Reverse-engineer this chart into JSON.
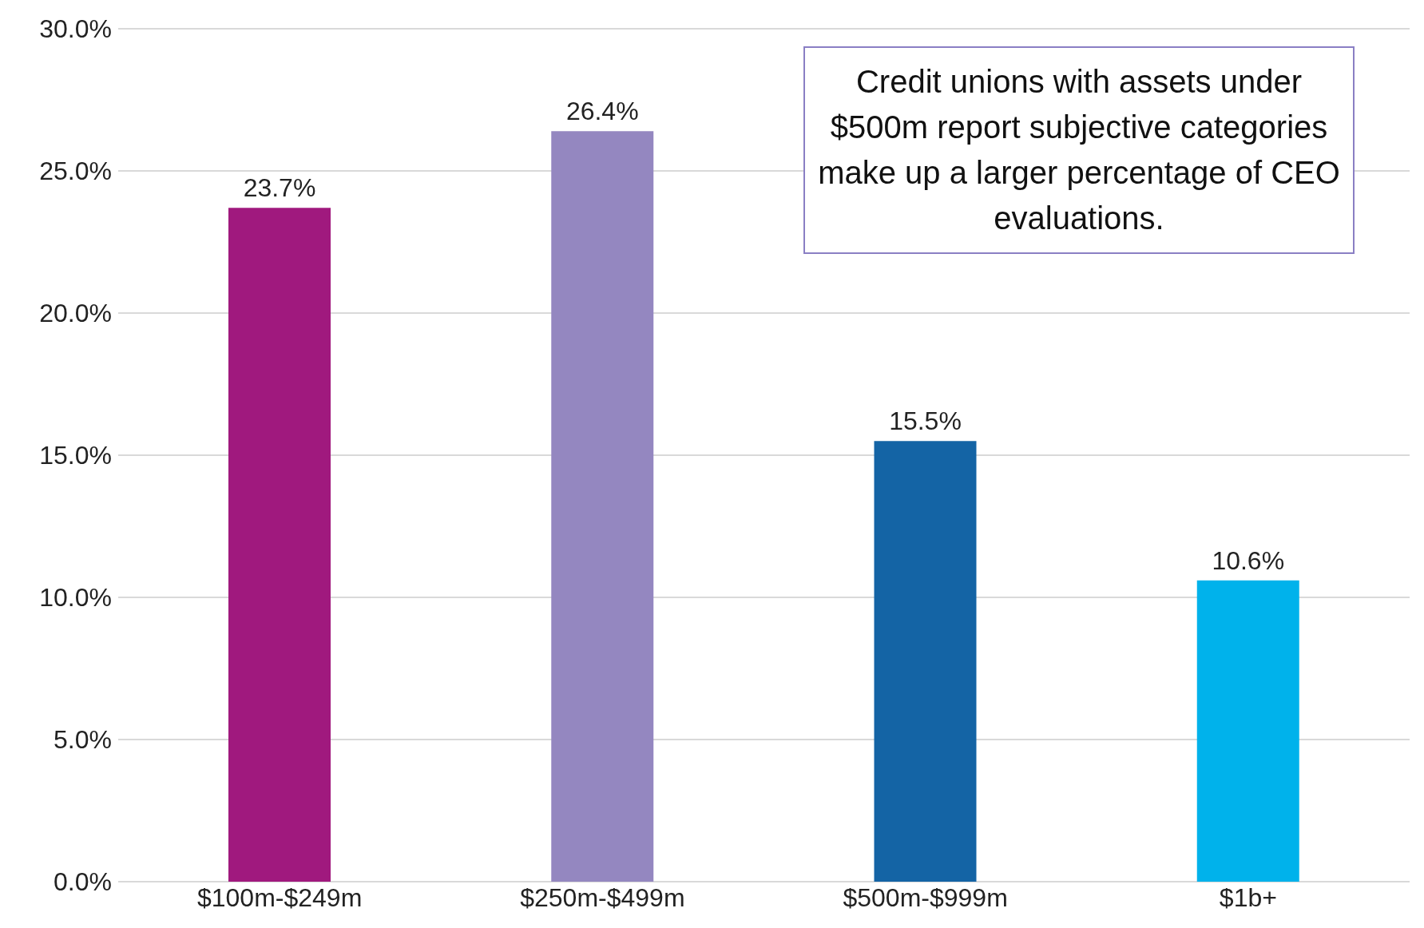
{
  "chart_data": {
    "type": "bar",
    "categories": [
      "$100m-$249m",
      "$250m-$499m",
      "$500m-$999m",
      "$1b+"
    ],
    "values": [
      23.7,
      26.4,
      15.5,
      10.6
    ],
    "colors": [
      "#a0197e",
      "#9487c0",
      "#1464a5",
      "#00b2eb"
    ],
    "value_labels": [
      "23.7%",
      "26.4%",
      "15.5%",
      "10.6%"
    ],
    "ylim": [
      0,
      30
    ],
    "yticks": [
      {
        "value": 0,
        "label": "0.0%"
      },
      {
        "value": 5,
        "label": "5.0%"
      },
      {
        "value": 10,
        "label": "10.0%"
      },
      {
        "value": 15,
        "label": "15.0%"
      },
      {
        "value": 20,
        "label": "20.0%"
      },
      {
        "value": 25,
        "label": "25.0%"
      },
      {
        "value": 30,
        "label": "30.0%"
      }
    ],
    "grid": "y",
    "annotations": [
      "Credit unions with assets under $500m report subjective categories make up a larger percentage of CEO evaluations."
    ]
  }
}
